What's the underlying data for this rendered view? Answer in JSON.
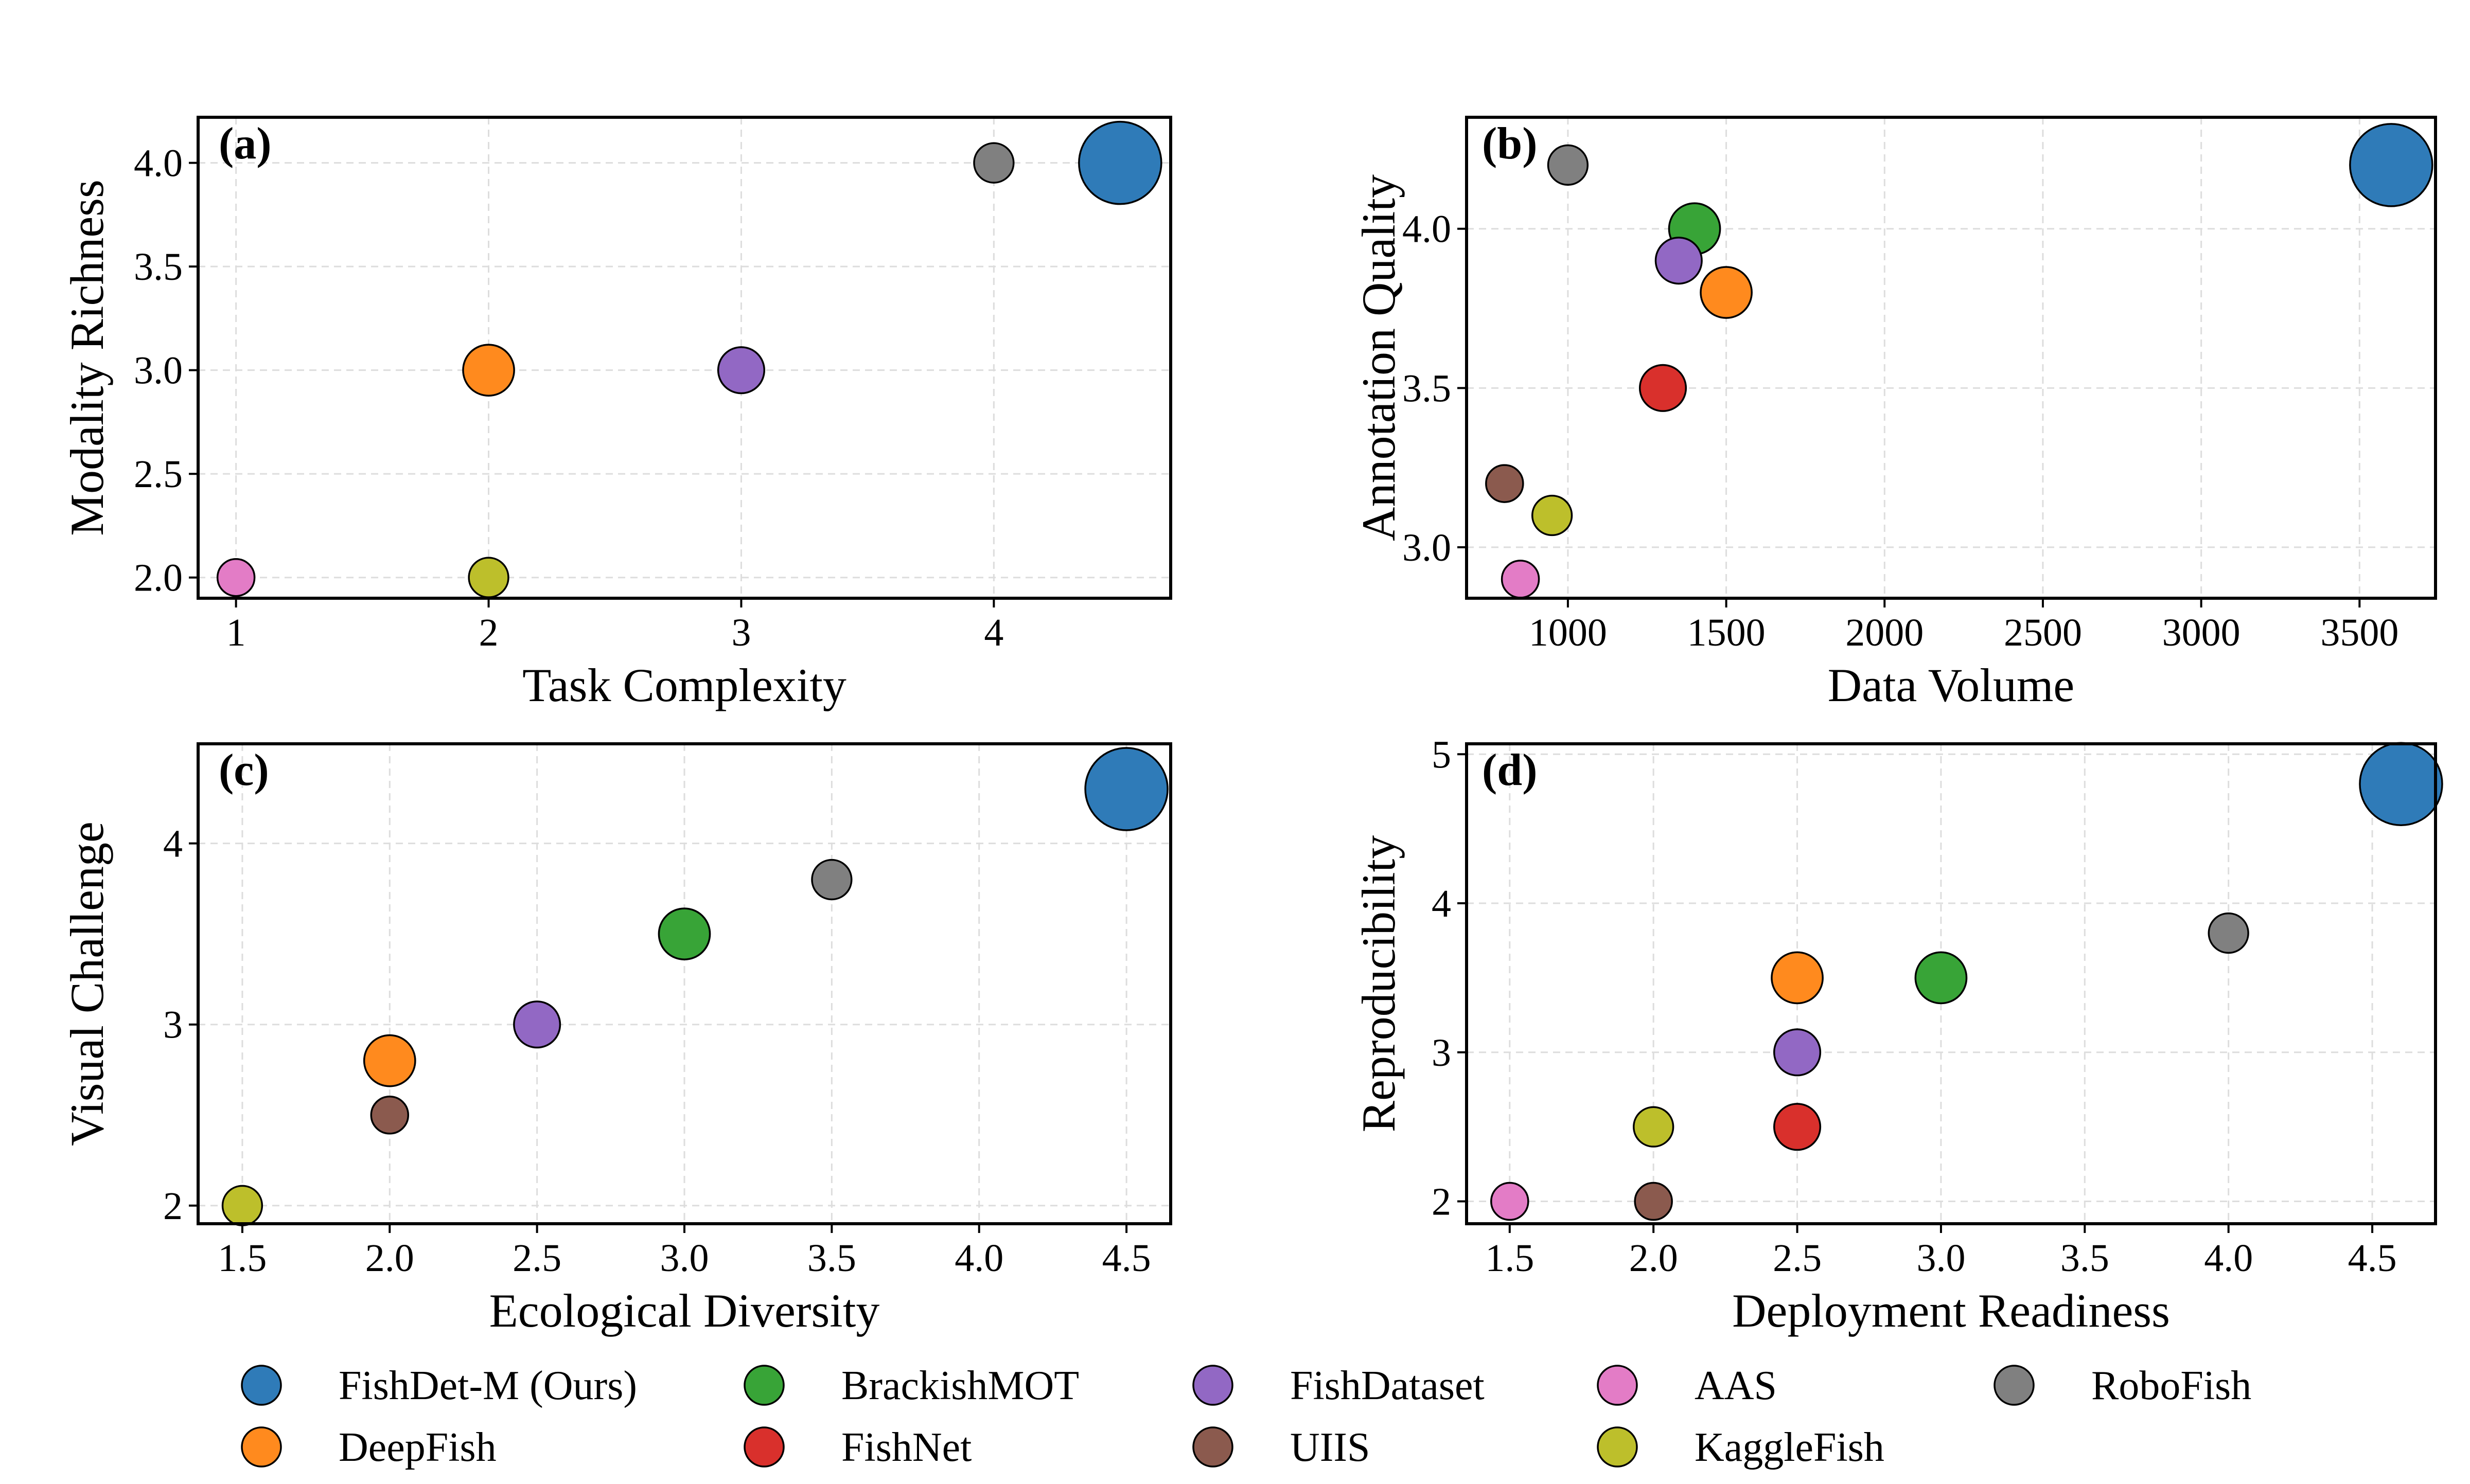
{
  "chart_data": [
    {
      "type": "scatter",
      "tag": "(a)",
      "xlabel": "Task Complexity",
      "ylabel": "Modality Richness",
      "xlim": [
        0.85,
        4.7
      ],
      "ylim": [
        1.9,
        4.22
      ],
      "xticks": [
        1,
        2,
        3,
        4
      ],
      "xtick_labels": [
        "1",
        "2",
        "3",
        "4"
      ],
      "yticks": [
        2.0,
        2.5,
        3.0,
        3.5,
        4.0
      ],
      "ytick_labels": [
        "2.0",
        "2.5",
        "3.0",
        "3.5",
        "4.0"
      ],
      "grid": true,
      "points": [
        {
          "dataset": "FishDet-M (Ours)",
          "x": 4.5,
          "y": 4.0
        },
        {
          "dataset": "RoboFish",
          "x": 4.0,
          "y": 4.0
        },
        {
          "dataset": "DeepFish",
          "x": 2.0,
          "y": 3.0
        },
        {
          "dataset": "FishDataset",
          "x": 3.0,
          "y": 3.0
        },
        {
          "dataset": "AAS",
          "x": 1.0,
          "y": 2.0
        },
        {
          "dataset": "KaggleFish",
          "x": 2.0,
          "y": 2.0
        }
      ]
    },
    {
      "type": "scatter",
      "tag": "(b)",
      "xlabel": "Data Volume",
      "ylabel": "Annotation Quality",
      "xlim": [
        680,
        3740
      ],
      "ylim": [
        2.84,
        4.35
      ],
      "xticks": [
        1000,
        1500,
        2000,
        2500,
        3000,
        3500
      ],
      "xtick_labels": [
        "1000",
        "1500",
        "2000",
        "2500",
        "3000",
        "3500"
      ],
      "yticks": [
        3.0,
        3.5,
        4.0
      ],
      "ytick_labels": [
        "3.0",
        "3.5",
        "4.0"
      ],
      "grid": true,
      "points": [
        {
          "dataset": "FishDet-M (Ours)",
          "x": 3600,
          "y": 4.2
        },
        {
          "dataset": "RoboFish",
          "x": 1000,
          "y": 4.2
        },
        {
          "dataset": "BrackishMOT",
          "x": 1400,
          "y": 4.0
        },
        {
          "dataset": "FishDataset",
          "x": 1350,
          "y": 3.9
        },
        {
          "dataset": "DeepFish",
          "x": 1500,
          "y": 3.8
        },
        {
          "dataset": "FishNet",
          "x": 1300,
          "y": 3.5
        },
        {
          "dataset": "UIIS",
          "x": 800,
          "y": 3.2
        },
        {
          "dataset": "KaggleFish",
          "x": 950,
          "y": 3.1
        },
        {
          "dataset": "AAS",
          "x": 850,
          "y": 2.9
        }
      ]
    },
    {
      "type": "scatter",
      "tag": "(c)",
      "xlabel": "Ecological Diversity",
      "ylabel": "Visual Challenge",
      "xlim": [
        1.35,
        4.65
      ],
      "ylim": [
        1.9,
        4.55
      ],
      "xticks": [
        1.5,
        2.0,
        2.5,
        3.0,
        3.5,
        4.0,
        4.5
      ],
      "xtick_labels": [
        "1.5",
        "2.0",
        "2.5",
        "3.0",
        "3.5",
        "4.0",
        "4.5"
      ],
      "yticks": [
        2,
        3,
        4
      ],
      "ytick_labels": [
        "2",
        "3",
        "4"
      ],
      "grid": true,
      "points": [
        {
          "dataset": "FishDet-M (Ours)",
          "x": 4.5,
          "y": 4.3
        },
        {
          "dataset": "RoboFish",
          "x": 3.5,
          "y": 3.8
        },
        {
          "dataset": "BrackishMOT",
          "x": 3.0,
          "y": 3.5
        },
        {
          "dataset": "FishDataset",
          "x": 2.5,
          "y": 3.0
        },
        {
          "dataset": "DeepFish",
          "x": 2.0,
          "y": 2.8
        },
        {
          "dataset": "UIIS",
          "x": 2.0,
          "y": 2.5
        },
        {
          "dataset": "KaggleFish",
          "x": 1.5,
          "y": 2.0
        }
      ]
    },
    {
      "type": "scatter",
      "tag": "(d)",
      "xlabel": "Deployment Readiness",
      "ylabel": "Reproducibility",
      "xlim": [
        1.35,
        4.72
      ],
      "ylim": [
        1.85,
        5.07
      ],
      "xticks": [
        1.5,
        2.0,
        2.5,
        3.0,
        3.5,
        4.0,
        4.5
      ],
      "xtick_labels": [
        "1.5",
        "2.0",
        "2.5",
        "3.0",
        "3.5",
        "4.0",
        "4.5"
      ],
      "yticks": [
        2,
        3,
        4,
        5
      ],
      "ytick_labels": [
        "2",
        "3",
        "4",
        "5"
      ],
      "grid": true,
      "points": [
        {
          "dataset": "FishDet-M (Ours)",
          "x": 4.6,
          "y": 4.8
        },
        {
          "dataset": "RoboFish",
          "x": 4.0,
          "y": 3.8
        },
        {
          "dataset": "BrackishMOT",
          "x": 3.0,
          "y": 3.5
        },
        {
          "dataset": "DeepFish",
          "x": 2.5,
          "y": 3.5
        },
        {
          "dataset": "FishDataset",
          "x": 2.5,
          "y": 3.0
        },
        {
          "dataset": "FishNet",
          "x": 2.5,
          "y": 2.5
        },
        {
          "dataset": "KaggleFish",
          "x": 2.0,
          "y": 2.5
        },
        {
          "dataset": "AAS",
          "x": 1.5,
          "y": 2.0
        },
        {
          "dataset": "UIIS",
          "x": 2.0,
          "y": 2.0
        }
      ]
    }
  ],
  "datasets": [
    {
      "name": "FishDet-M (Ours)",
      "color": "#2f7bb8",
      "marker_scale": 1.0
    },
    {
      "name": "DeepFish",
      "color": "#ff8a1e",
      "marker_scale": 0.62
    },
    {
      "name": "BrackishMOT",
      "color": "#38a437",
      "marker_scale": 0.62
    },
    {
      "name": "FishNet",
      "color": "#d9302c",
      "marker_scale": 0.56
    },
    {
      "name": "FishDataset",
      "color": "#9268c4",
      "marker_scale": 0.56
    },
    {
      "name": "UIIS",
      "color": "#8b5a4e",
      "marker_scale": 0.45
    },
    {
      "name": "AAS",
      "color": "#e37cc6",
      "marker_scale": 0.45
    },
    {
      "name": "KaggleFish",
      "color": "#bdbf2b",
      "marker_scale": 0.48
    },
    {
      "name": "RoboFish",
      "color": "#808080",
      "marker_scale": 0.48
    }
  ],
  "legend": {
    "placement": "bottom",
    "rows": [
      [
        "FishDet-M (Ours)",
        "BrackishMOT",
        "FishDataset",
        "AAS",
        "RoboFish"
      ],
      [
        "DeepFish",
        "FishNet",
        "UIIS",
        "KaggleFish"
      ]
    ]
  }
}
